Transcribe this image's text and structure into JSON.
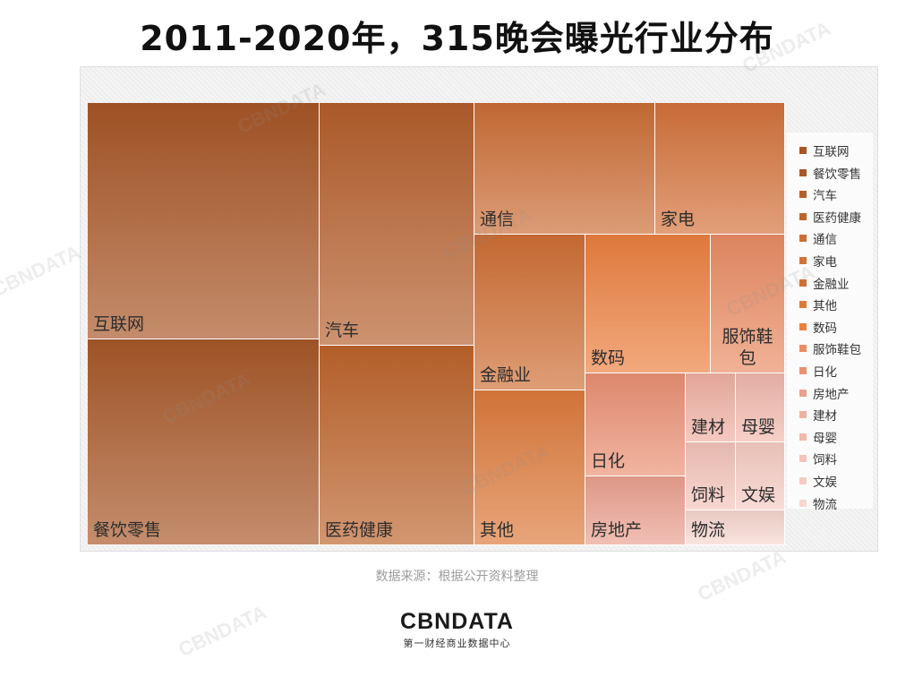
{
  "title": "2011-2020年，315晚会曝光行业分布",
  "source": "数据来源：根据公开资料整理",
  "logo": {
    "text": "CBNDATA",
    "subtitle": "第一财经商业数据中心"
  },
  "watermark": "CBNDATA",
  "chart_data": {
    "type": "treemap",
    "title": "2011-2020年，315晚会曝光行业分布",
    "legend_position": "right",
    "series": [
      {
        "name": "互联网",
        "value": 14.2,
        "color": "#a85626"
      },
      {
        "name": "餐饮零售",
        "value": 12.5,
        "color": "#a85828"
      },
      {
        "name": "汽车",
        "value": 10.6,
        "color": "#b55f2c"
      },
      {
        "name": "医药健康",
        "value": 8.0,
        "color": "#bd642c"
      },
      {
        "name": "通信",
        "value": 6.1,
        "color": "#cc6e35"
      },
      {
        "name": "家电",
        "value": 5.1,
        "color": "#d4723a"
      },
      {
        "name": "金融业",
        "value": 4.8,
        "color": "#cf6f34"
      },
      {
        "name": "其他",
        "value": 4.8,
        "color": "#dd7a3c"
      },
      {
        "name": "数码",
        "value": 4.7,
        "color": "#ec8040"
      },
      {
        "name": "服饰鞋包",
        "value": 3.4,
        "color": "#ea8c64"
      },
      {
        "name": "日化",
        "value": 3.0,
        "color": "#ea9174"
      },
      {
        "name": "房地产",
        "value": 1.9,
        "color": "#eba190"
      },
      {
        "name": "建材",
        "value": 1.4,
        "color": "#f0b0a2"
      },
      {
        "name": "母婴",
        "value": 1.4,
        "color": "#f2b8ac"
      },
      {
        "name": "饲料",
        "value": 1.4,
        "color": "#f4c4ba"
      },
      {
        "name": "文娱",
        "value": 1.4,
        "color": "#f6ccc3"
      },
      {
        "name": "物流",
        "value": 0.8,
        "color": "#f7d6ce"
      }
    ]
  }
}
